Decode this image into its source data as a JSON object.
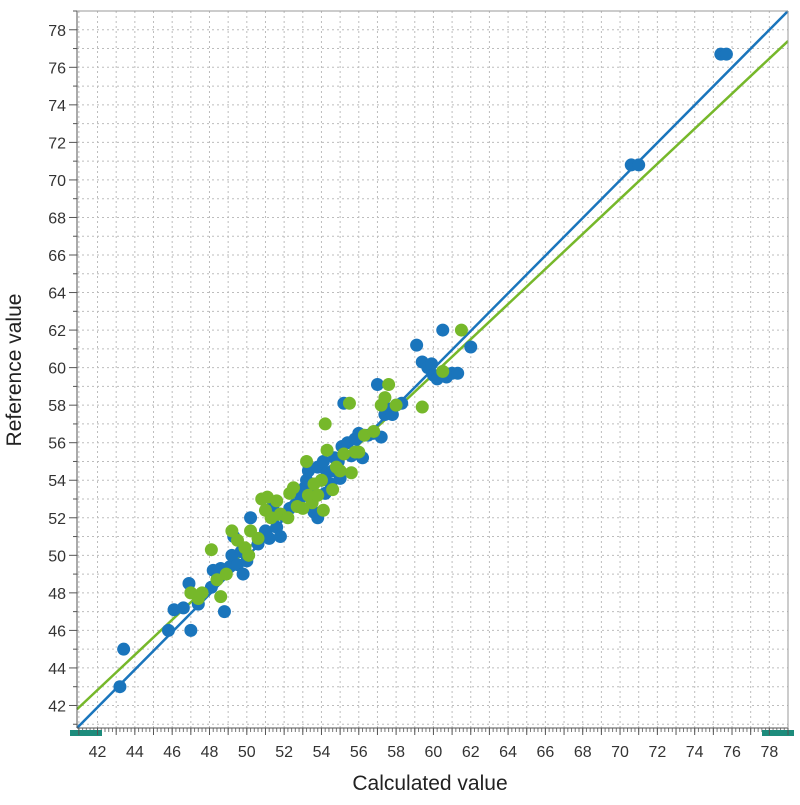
{
  "chart_data": {
    "type": "scatter",
    "title": "",
    "xlabel": "Calculated value",
    "ylabel": "Reference value",
    "xlim": [
      40.9,
      79
    ],
    "ylim": [
      40.8,
      79
    ],
    "x_ticks": [
      42,
      44,
      46,
      48,
      50,
      52,
      54,
      56,
      58,
      60,
      62,
      64,
      66,
      68,
      70,
      72,
      74,
      76,
      78
    ],
    "y_ticks": [
      42,
      44,
      46,
      48,
      50,
      52,
      54,
      56,
      58,
      60,
      62,
      64,
      66,
      68,
      70,
      72,
      74,
      76,
      78
    ],
    "grid": true,
    "legend": "none",
    "series": [
      {
        "color": "#1a75bc",
        "points": [
          [
            43.2,
            43.0
          ],
          [
            43.4,
            45.0
          ],
          [
            45.8,
            46.0
          ],
          [
            46.1,
            47.1
          ],
          [
            46.6,
            47.2
          ],
          [
            46.9,
            48.5
          ],
          [
            47.0,
            46.0
          ],
          [
            47.4,
            47.4
          ],
          [
            48.1,
            48.3
          ],
          [
            48.2,
            49.2
          ],
          [
            48.6,
            49.3
          ],
          [
            48.8,
            47.0
          ],
          [
            49.1,
            49.4
          ],
          [
            49.2,
            50.0
          ],
          [
            49.3,
            51.0
          ],
          [
            49.5,
            49.5
          ],
          [
            49.7,
            50.2
          ],
          [
            49.8,
            49.0
          ],
          [
            50.0,
            49.7
          ],
          [
            50.2,
            52.0
          ],
          [
            50.6,
            50.6
          ],
          [
            51.0,
            51.3
          ],
          [
            51.2,
            50.9
          ],
          [
            51.4,
            52.6
          ],
          [
            51.6,
            51.5
          ],
          [
            51.8,
            51.0
          ],
          [
            52.0,
            52.1
          ],
          [
            52.3,
            52.5
          ],
          [
            52.6,
            52.7
          ],
          [
            52.9,
            53.1
          ],
          [
            53.1,
            53.6
          ],
          [
            53.2,
            54.0
          ],
          [
            53.3,
            54.5
          ],
          [
            53.5,
            53.4
          ],
          [
            53.6,
            52.3
          ],
          [
            53.8,
            52.0
          ],
          [
            53.8,
            54.7
          ],
          [
            54.0,
            54.0
          ],
          [
            54.1,
            55.0
          ],
          [
            54.2,
            53.3
          ],
          [
            54.3,
            54.4
          ],
          [
            54.5,
            53.8
          ],
          [
            54.6,
            54.5
          ],
          [
            54.7,
            55.2
          ],
          [
            54.9,
            55.0
          ],
          [
            55.0,
            54.1
          ],
          [
            55.1,
            55.8
          ],
          [
            55.2,
            58.1
          ],
          [
            55.4,
            56.0
          ],
          [
            55.6,
            55.3
          ],
          [
            55.8,
            56.2
          ],
          [
            56.0,
            56.5
          ],
          [
            56.2,
            55.2
          ],
          [
            56.5,
            56.4
          ],
          [
            56.8,
            56.5
          ],
          [
            57.0,
            59.1
          ],
          [
            57.2,
            56.3
          ],
          [
            57.4,
            57.5
          ],
          [
            57.6,
            57.8
          ],
          [
            57.8,
            57.5
          ],
          [
            58.0,
            58.0
          ],
          [
            58.3,
            58.1
          ],
          [
            59.1,
            61.2
          ],
          [
            59.4,
            60.3
          ],
          [
            59.7,
            60.0
          ],
          [
            59.9,
            60.2
          ],
          [
            60.0,
            59.6
          ],
          [
            60.2,
            59.4
          ],
          [
            60.5,
            62.0
          ],
          [
            60.7,
            59.5
          ],
          [
            61.0,
            59.7
          ],
          [
            61.3,
            59.7
          ],
          [
            62.0,
            61.1
          ],
          [
            70.6,
            70.8
          ],
          [
            71.0,
            70.8
          ],
          [
            75.4,
            76.7
          ],
          [
            75.7,
            76.7
          ]
        ],
        "fit_line": [
          [
            40.9,
            40.8
          ],
          [
            79.0,
            79.0
          ]
        ]
      },
      {
        "color": "#76b82a",
        "points": [
          [
            47.0,
            48.0
          ],
          [
            47.4,
            47.7
          ],
          [
            47.6,
            48.0
          ],
          [
            48.1,
            50.3
          ],
          [
            48.4,
            48.7
          ],
          [
            48.6,
            47.8
          ],
          [
            48.9,
            49.0
          ],
          [
            49.2,
            51.3
          ],
          [
            49.5,
            50.8
          ],
          [
            49.9,
            50.4
          ],
          [
            50.1,
            50.0
          ],
          [
            50.2,
            51.3
          ],
          [
            50.6,
            50.9
          ],
          [
            50.8,
            53.0
          ],
          [
            51.0,
            52.4
          ],
          [
            51.1,
            53.1
          ],
          [
            51.3,
            52.0
          ],
          [
            51.6,
            52.9
          ],
          [
            51.8,
            52.2
          ],
          [
            52.2,
            52.0
          ],
          [
            52.3,
            53.3
          ],
          [
            52.5,
            53.6
          ],
          [
            52.7,
            52.6
          ],
          [
            53.0,
            52.5
          ],
          [
            53.2,
            55.0
          ],
          [
            53.3,
            53.2
          ],
          [
            53.5,
            52.8
          ],
          [
            53.6,
            53.8
          ],
          [
            53.8,
            53.2
          ],
          [
            54.0,
            54.0
          ],
          [
            54.1,
            52.4
          ],
          [
            54.2,
            57.0
          ],
          [
            54.3,
            55.6
          ],
          [
            54.6,
            53.5
          ],
          [
            54.8,
            54.7
          ],
          [
            55.0,
            54.5
          ],
          [
            55.2,
            55.4
          ],
          [
            55.5,
            58.1
          ],
          [
            55.6,
            54.4
          ],
          [
            55.8,
            55.5
          ],
          [
            56.0,
            55.5
          ],
          [
            56.3,
            56.4
          ],
          [
            56.8,
            56.6
          ],
          [
            57.2,
            58.0
          ],
          [
            57.4,
            58.4
          ],
          [
            57.6,
            59.1
          ],
          [
            58.0,
            58.0
          ],
          [
            59.4,
            57.9
          ],
          [
            60.5,
            59.8
          ],
          [
            61.5,
            62.0
          ]
        ],
        "fit_line": [
          [
            40.9,
            41.8
          ],
          [
            79.0,
            77.4
          ]
        ]
      }
    ]
  }
}
